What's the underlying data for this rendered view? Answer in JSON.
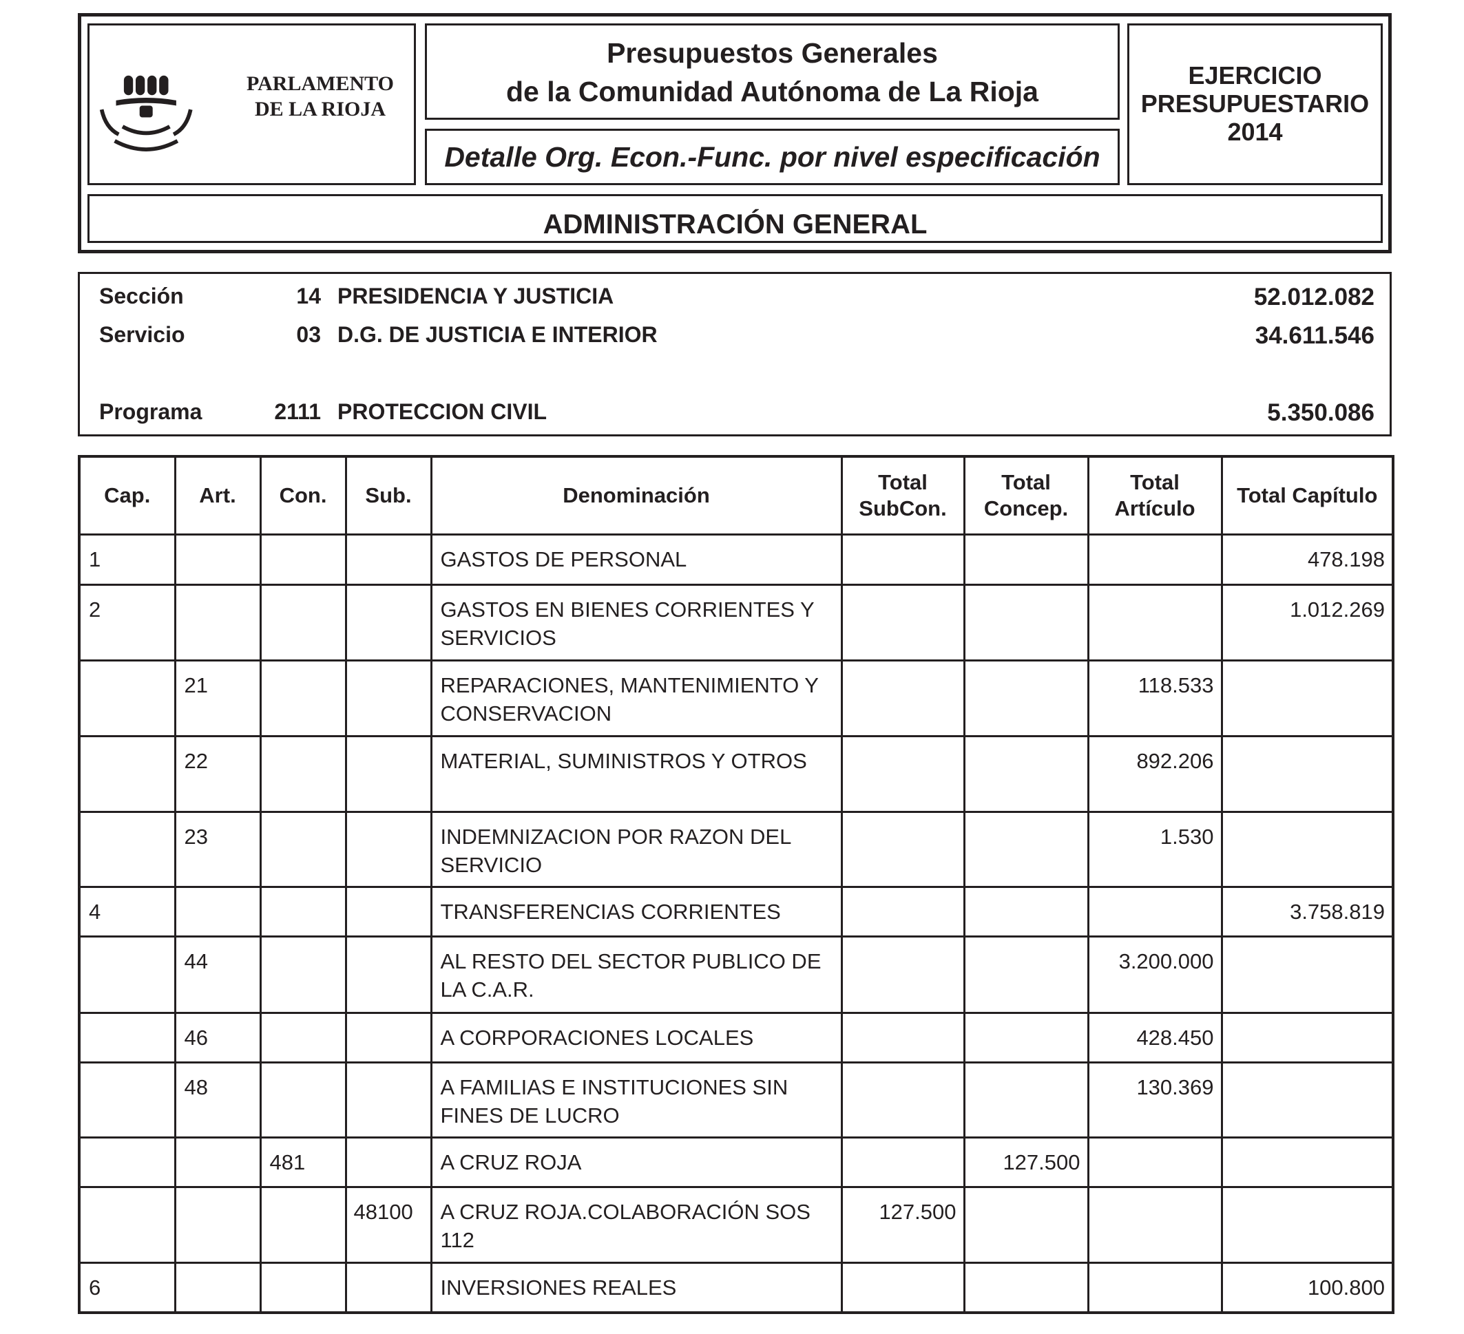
{
  "header": {
    "logo_text": [
      "PARLAMENTO",
      "DE LA RIOJA"
    ],
    "title_lines": [
      "Presupuestos Generales",
      "de la Comunidad Autónoma de La Rioja"
    ],
    "subtitle": "Detalle Org. Econ.-Func. por nivel especificación",
    "ejercicio_lines": [
      "EJERCICIO",
      "PRESUPUESTARIO",
      "2014"
    ],
    "admin": "ADMINISTRACIÓN GENERAL"
  },
  "section": {
    "rows": [
      {
        "label": "Sección",
        "code": "14",
        "name": "PRESIDENCIA Y JUSTICIA",
        "amount": "52.012.082"
      },
      {
        "label": "Servicio",
        "code": "03",
        "name": "D.G. DE JUSTICIA E INTERIOR",
        "amount": "34.611.546"
      },
      {
        "label": "Programa",
        "code": "2111",
        "name": "PROTECCION CIVIL",
        "amount": "5.350.086"
      }
    ]
  },
  "table": {
    "headers": [
      "Cap.",
      "Art.",
      "Con.",
      "Sub.",
      "Denominación",
      "Total SubCon.",
      "Total Concep.",
      "Total Artículo",
      "Total Capítulo"
    ],
    "rows": [
      [
        "1",
        "",
        "",
        "",
        "GASTOS DE PERSONAL",
        "",
        "",
        "",
        "478.198"
      ],
      [
        "2",
        "",
        "",
        "",
        "GASTOS EN BIENES CORRIENTES Y SERVICIOS",
        "",
        "",
        "",
        "1.012.269"
      ],
      [
        "",
        "21",
        "",
        "",
        "REPARACIONES, MANTENIMIENTO Y CONSERVACION",
        "",
        "",
        "118.533",
        ""
      ],
      [
        "",
        "22",
        "",
        "",
        "MATERIAL, SUMINISTROS Y OTROS",
        "",
        "",
        "892.206",
        ""
      ],
      [
        "",
        "23",
        "",
        "",
        "INDEMNIZACION POR RAZON DEL SERVICIO",
        "",
        "",
        "1.530",
        ""
      ],
      [
        "4",
        "",
        "",
        "",
        "TRANSFERENCIAS CORRIENTES",
        "",
        "",
        "",
        "3.758.819"
      ],
      [
        "",
        "44",
        "",
        "",
        "AL RESTO DEL SECTOR PUBLICO DE LA C.A.R.",
        "",
        "",
        "3.200.000",
        ""
      ],
      [
        "",
        "46",
        "",
        "",
        "A CORPORACIONES LOCALES",
        "",
        "",
        "428.450",
        ""
      ],
      [
        "",
        "48",
        "",
        "",
        "A FAMILIAS E INSTITUCIONES SIN FINES DE LUCRO",
        "",
        "",
        "130.369",
        ""
      ],
      [
        "",
        "",
        "481",
        "",
        "A CRUZ ROJA",
        "",
        "127.500",
        "",
        ""
      ],
      [
        "",
        "",
        "",
        "48100",
        "A CRUZ ROJA.COLABORACIÓN SOS 112",
        "127.500",
        "",
        "",
        ""
      ],
      [
        "6",
        "",
        "",
        "",
        "INVERSIONES REALES",
        "",
        "",
        "",
        "100.800"
      ]
    ]
  }
}
